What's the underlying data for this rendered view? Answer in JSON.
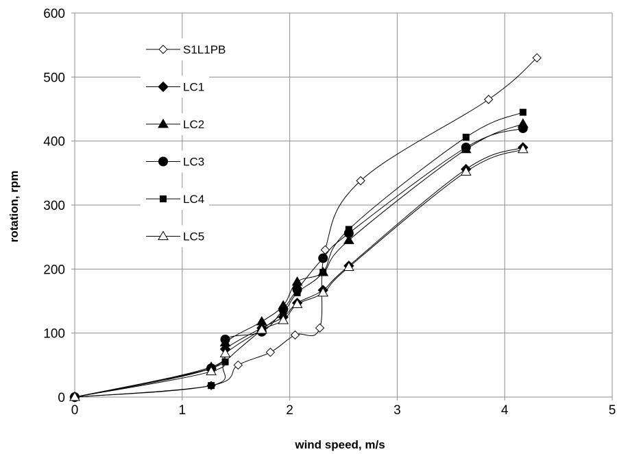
{
  "chart_data": {
    "type": "line",
    "title": "",
    "xlabel": "wind speed, m/s",
    "ylabel": "rotation, rpm",
    "xlim": [
      0,
      5
    ],
    "ylim": [
      0,
      600
    ],
    "xticks": [
      0,
      1,
      2,
      3,
      4,
      5
    ],
    "yticks": [
      0,
      100,
      200,
      300,
      400,
      500,
      600
    ],
    "grid": true,
    "legend_position": "top-left",
    "series": [
      {
        "name": "S1L1PB",
        "marker": "diamond-open",
        "x": [
          0,
          1.27,
          1.52,
          1.82,
          2.05,
          2.28,
          2.33,
          2.66,
          3.85,
          4.3
        ],
        "y": [
          0,
          18,
          50,
          70,
          97,
          108,
          230,
          338,
          465,
          530
        ]
      },
      {
        "name": "LC1",
        "marker": "diamond-filled",
        "x": [
          0,
          1.27,
          1.4,
          1.74,
          1.94,
          2.07,
          2.31,
          2.55,
          3.64,
          4.17
        ],
        "y": [
          0,
          45,
          75,
          108,
          125,
          147,
          167,
          205,
          356,
          390
        ]
      },
      {
        "name": "LC2",
        "marker": "triangle-filled",
        "x": [
          0,
          1.27,
          1.4,
          1.74,
          1.94,
          2.07,
          2.31,
          2.55,
          3.64,
          4.17
        ],
        "y": [
          0,
          47,
          85,
          118,
          143,
          180,
          195,
          245,
          387,
          427
        ]
      },
      {
        "name": "LC3",
        "marker": "circle-filled",
        "x": [
          0,
          1.27,
          1.4,
          1.74,
          1.94,
          2.07,
          2.31,
          2.55,
          3.64,
          4.17
        ],
        "y": [
          0,
          45,
          90,
          102,
          137,
          168,
          217,
          256,
          390,
          420
        ]
      },
      {
        "name": "LC4",
        "marker": "square-filled",
        "x": [
          0,
          1.27,
          1.4,
          1.74,
          1.94,
          2.07,
          2.31,
          2.55,
          3.64,
          4.17
        ],
        "y": [
          0,
          18,
          55,
          105,
          132,
          163,
          195,
          262,
          406,
          445
        ]
      },
      {
        "name": "LC5",
        "marker": "triangle-open",
        "x": [
          0,
          1.27,
          1.4,
          1.74,
          1.94,
          2.07,
          2.31,
          2.55,
          3.64,
          4.17
        ],
        "y": [
          0,
          40,
          68,
          105,
          120,
          145,
          163,
          203,
          352,
          387
        ]
      }
    ]
  }
}
